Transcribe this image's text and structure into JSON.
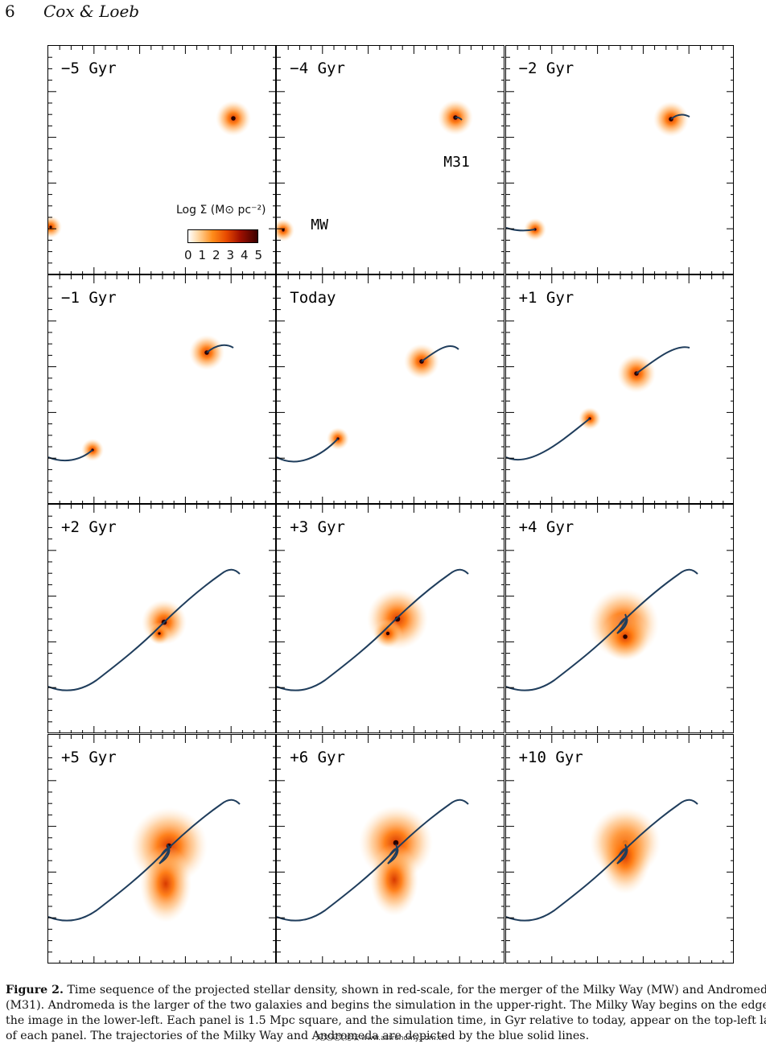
{
  "header": {
    "page_number": "6",
    "authors": "Cox & Loeb"
  },
  "panels": [
    {
      "label": "−5 Gyr"
    },
    {
      "label": "−4 Gyr"
    },
    {
      "label": "−2 Gyr"
    },
    {
      "label": "−1 Gyr"
    },
    {
      "label": "Today"
    },
    {
      "label": "+1 Gyr"
    },
    {
      "label": "+2 Gyr"
    },
    {
      "label": "+3 Gyr"
    },
    {
      "label": "+4 Gyr"
    },
    {
      "label": "+5 Gyr"
    },
    {
      "label": "+6 Gyr"
    },
    {
      "label": "+10 Gyr"
    }
  ],
  "annotations": {
    "m31": "M31",
    "mw": "MW"
  },
  "legend": {
    "title": "Log Σ (M⊙ pc⁻²)",
    "ticks": [
      "0",
      "1",
      "2",
      "3",
      "4",
      "5"
    ],
    "scale": "red-scale"
  },
  "colors": {
    "trajectory": "#1f3d5c",
    "galaxy_core": "#2a0000",
    "galaxy_glow": "#ff8c1a"
  },
  "caption": {
    "label": "Figure 2.",
    "lines": [
      "Time sequence of the projected stellar density, shown in red-scale, for the merger of the Milky Way (MW) and Andromeda",
      "(M31). Andromeda is the larger of the two galaxies and begins the simulation in the upper-right. The Milky Way begins on the edge of",
      "the image in the lower-left. Each panel is 1.5 Mpc square, and the simulation time, in Gyr relative to today, appear on the top-left label",
      "of each panel. The trajectories of the Milky Way and Andromeda are depicted by the blue solid lines."
    ]
  },
  "watermark": "天文天文论坛 www.astronomy.com.cn"
}
